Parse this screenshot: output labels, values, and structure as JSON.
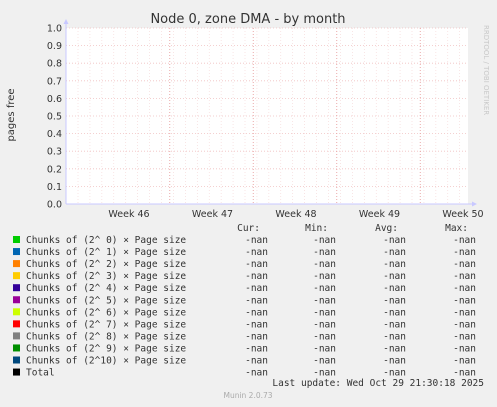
{
  "chart_data": {
    "type": "line",
    "title": "Node 0, zone DMA - by month",
    "ylabel": "pages free",
    "xlabel": "",
    "x_ticks": [
      "Week 46",
      "Week 47",
      "Week 48",
      "Week 49",
      "Week 50"
    ],
    "y_ticks": [
      "0.0",
      "0.1",
      "0.2",
      "0.3",
      "0.4",
      "0.5",
      "0.6",
      "0.7",
      "0.8",
      "0.9",
      "1.0"
    ],
    "ylim": [
      0,
      1
    ],
    "grid": true,
    "watermark": "RRDTOOL / TOBI OETIKER",
    "legend_headers": [
      "Cur:",
      "Min:",
      "Avg:",
      "Max:"
    ],
    "series": [
      {
        "name": "Chunks of (2^ 0) × Page size",
        "color": "#00cc00",
        "cur": "-nan",
        "min": "-nan",
        "avg": "-nan",
        "max": "-nan"
      },
      {
        "name": "Chunks of (2^ 1) × Page size",
        "color": "#0066b3",
        "cur": "-nan",
        "min": "-nan",
        "avg": "-nan",
        "max": "-nan"
      },
      {
        "name": "Chunks of (2^ 2) × Page size",
        "color": "#ff8000",
        "cur": "-nan",
        "min": "-nan",
        "avg": "-nan",
        "max": "-nan"
      },
      {
        "name": "Chunks of (2^ 3) × Page size",
        "color": "#ffcc00",
        "cur": "-nan",
        "min": "-nan",
        "avg": "-nan",
        "max": "-nan"
      },
      {
        "name": "Chunks of (2^ 4) × Page size",
        "color": "#330099",
        "cur": "-nan",
        "min": "-nan",
        "avg": "-nan",
        "max": "-nan"
      },
      {
        "name": "Chunks of (2^ 5) × Page size",
        "color": "#990099",
        "cur": "-nan",
        "min": "-nan",
        "avg": "-nan",
        "max": "-nan"
      },
      {
        "name": "Chunks of (2^ 6) × Page size",
        "color": "#ccff00",
        "cur": "-nan",
        "min": "-nan",
        "avg": "-nan",
        "max": "-nan"
      },
      {
        "name": "Chunks of (2^ 7) × Page size",
        "color": "#ff0000",
        "cur": "-nan",
        "min": "-nan",
        "avg": "-nan",
        "max": "-nan"
      },
      {
        "name": "Chunks of (2^ 8) × Page size",
        "color": "#808080",
        "cur": "-nan",
        "min": "-nan",
        "avg": "-nan",
        "max": "-nan"
      },
      {
        "name": "Chunks of (2^ 9) × Page size",
        "color": "#008f00",
        "cur": "-nan",
        "min": "-nan",
        "avg": "-nan",
        "max": "-nan"
      },
      {
        "name": "Chunks of (2^10) × Page size",
        "color": "#00487d",
        "cur": "-nan",
        "min": "-nan",
        "avg": "-nan",
        "max": "-nan"
      },
      {
        "name": "Total",
        "color": "#000000",
        "cur": "-nan",
        "min": "-nan",
        "avg": "-nan",
        "max": "-nan"
      }
    ],
    "last_update": "Last update: Wed Oct 29 21:30:18 2025",
    "footer": "Munin 2.0.73"
  }
}
